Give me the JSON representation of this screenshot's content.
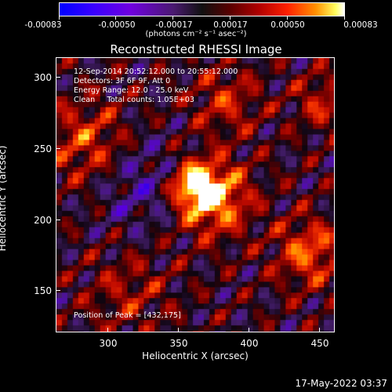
{
  "colorbar": {
    "tick_labels": [
      "-0.00083",
      "-0.00050",
      "-0.00017",
      "0.00017",
      "0.00050",
      "0.00083"
    ],
    "units": "(photons cm⁻² s⁻¹ asec⁻²)",
    "colors": [
      "#0000ff",
      "#6000e0",
      "#111111",
      "#b00000",
      "#ff8000",
      "#ffffff"
    ]
  },
  "title": "Reconstructed RHESSI Image",
  "annotations": {
    "time_range": "12-Sep-2014 20:52:12.000 to 20:55:12.000",
    "detectors": "Detectors: 3F 6F 9F, Att 0",
    "energy": "Energy Range: 12.0 - 25.0 keV",
    "method": "Clean     Total counts: 1.05E+03",
    "peak": "Position of Peak = [432,175]"
  },
  "x_axis": {
    "label": "Heliocentric X (arcsec)",
    "ticks": [
      "300",
      "350",
      "400",
      "450"
    ],
    "range": [
      263,
      462
    ]
  },
  "y_axis": {
    "label": "Heliocentric Y (arcsec)",
    "ticks": [
      "150",
      "200",
      "250",
      "300"
    ],
    "range": [
      118,
      315
    ]
  },
  "datestamp": "17-May-2022 03:37"
}
